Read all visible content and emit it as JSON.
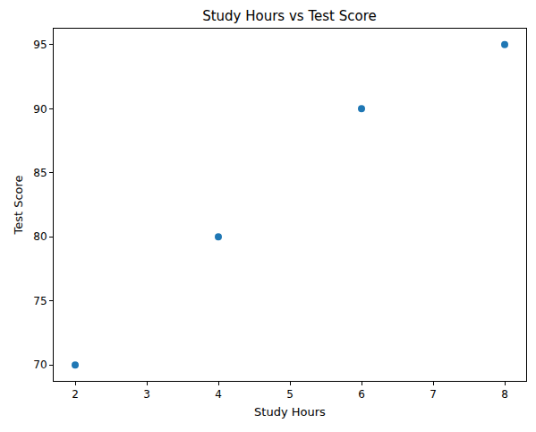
{
  "chart_data": {
    "type": "scatter",
    "title": "Study Hours vs Test Score",
    "x_label": "Study Hours",
    "y_label": "Test Score",
    "x": [
      2,
      4,
      6,
      8
    ],
    "values": [
      70,
      80,
      90,
      95
    ],
    "color": "#1f77b4",
    "marker": "circle",
    "xlim": [
      1.7,
      8.3
    ],
    "xticks": [
      2,
      3,
      4,
      5,
      6,
      7,
      8
    ],
    "ylim": [
      68.75,
      96.25
    ],
    "yticks": [
      70,
      75,
      80,
      85,
      90,
      95
    ],
    "grid": false
  }
}
